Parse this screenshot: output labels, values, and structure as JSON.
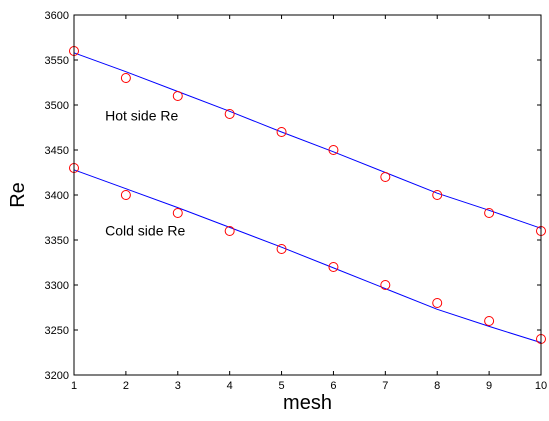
{
  "chart_data": {
    "type": "scatter",
    "title": "",
    "xlabel": "mesh",
    "ylabel": "Re",
    "xlim": [
      1,
      10
    ],
    "ylim": [
      3200,
      3600
    ],
    "xticks": [
      "1",
      "2",
      "3",
      "4",
      "5",
      "6",
      "7",
      "8",
      "9",
      "10"
    ],
    "yticks": [
      "3200",
      "3250",
      "3300",
      "3350",
      "3400",
      "3450",
      "3500",
      "3550",
      "3600"
    ],
    "grid": false,
    "legend": "none",
    "x": [
      1,
      2,
      3,
      4,
      5,
      6,
      7,
      8,
      9,
      10
    ],
    "series": [
      {
        "values": [
          3560,
          3530,
          3510,
          3490,
          3470,
          3450,
          3420,
          3400,
          3380,
          3360
        ],
        "fit": [
          3558,
          3537,
          3515,
          3493,
          3470,
          3448,
          3425,
          3402,
          3383,
          3363
        ],
        "marker_color": "#ff0000",
        "line_color": "#0000ff"
      },
      {
        "values": [
          3430,
          3400,
          3380,
          3360,
          3340,
          3320,
          3300,
          3280,
          3260,
          3240
        ],
        "fit": [
          3428,
          3407,
          3386,
          3364,
          3342,
          3319,
          3296,
          3273,
          3254,
          3236
        ],
        "marker_color": "#ff0000",
        "line_color": "#0000ff"
      }
    ],
    "annotations": [
      {
        "text": "Hot side Re",
        "x": 1.6,
        "y": 3483
      },
      {
        "text": "Cold side Re",
        "x": 1.6,
        "y": 3355
      }
    ]
  }
}
